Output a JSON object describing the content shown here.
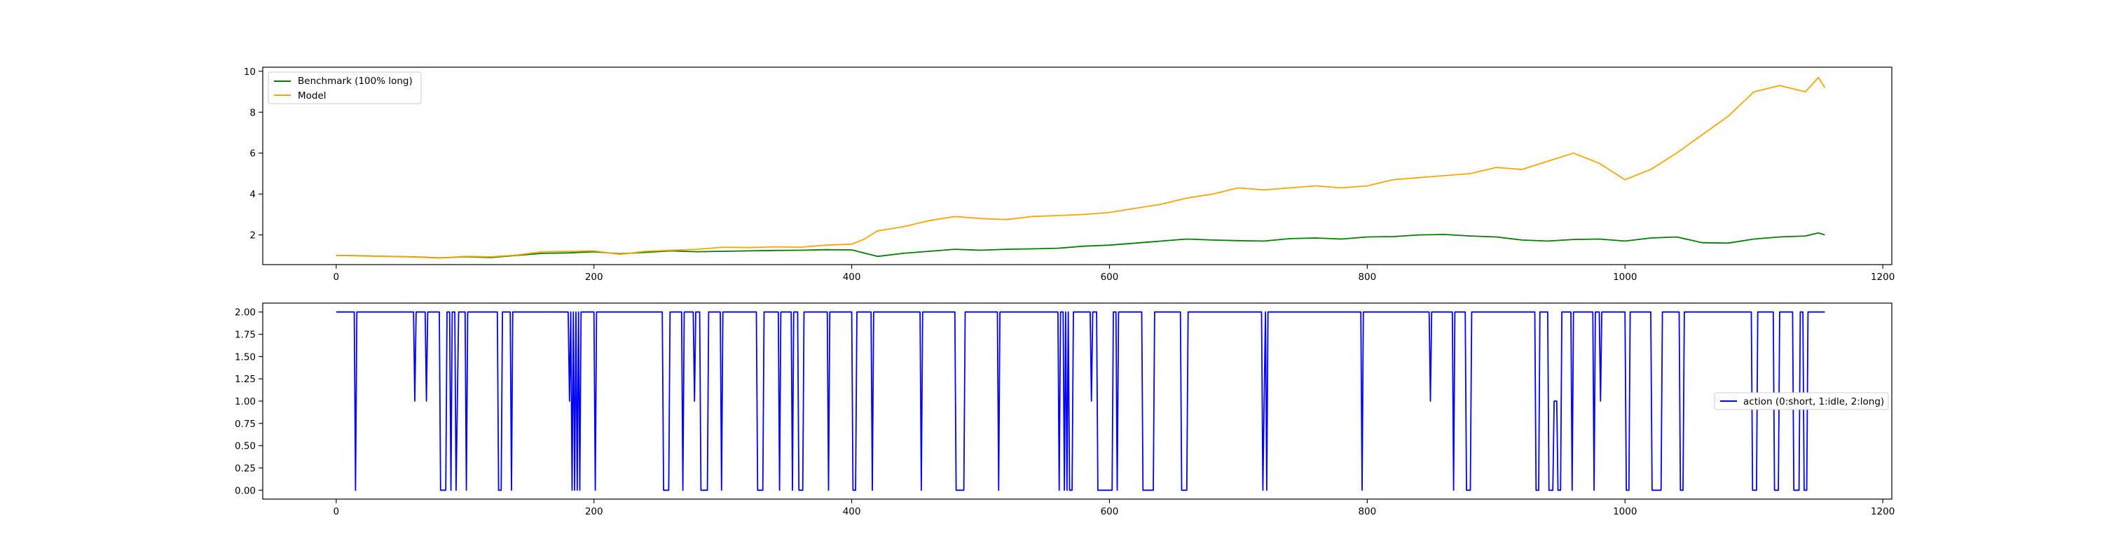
{
  "chart_data": [
    {
      "type": "line",
      "title": "",
      "xlabel": "",
      "ylabel": "",
      "xlim": [
        -57,
        1207
      ],
      "ylim": [
        0.55,
        10.2
      ],
      "xticks": [
        0,
        200,
        400,
        600,
        800,
        1000,
        1200
      ],
      "yticks": [
        2,
        4,
        6,
        8,
        10
      ],
      "grid": false,
      "legend_position": "upper-left",
      "series": [
        {
          "name": "Benchmark (100% long)",
          "color": "#008000",
          "x": [
            0,
            20,
            40,
            60,
            80,
            100,
            120,
            140,
            160,
            180,
            200,
            220,
            240,
            260,
            280,
            300,
            320,
            340,
            360,
            380,
            400,
            420,
            440,
            460,
            480,
            500,
            520,
            540,
            560,
            580,
            600,
            620,
            640,
            660,
            680,
            700,
            720,
            740,
            760,
            780,
            800,
            820,
            840,
            860,
            880,
            900,
            920,
            940,
            960,
            980,
            1000,
            1020,
            1040,
            1060,
            1080,
            1100,
            1120,
            1140,
            1150,
            1155
          ],
          "values": [
            1.0,
            0.98,
            0.95,
            0.93,
            0.88,
            0.93,
            0.9,
            1.0,
            1.1,
            1.12,
            1.18,
            1.08,
            1.15,
            1.22,
            1.18,
            1.2,
            1.22,
            1.24,
            1.25,
            1.28,
            1.27,
            0.95,
            1.1,
            1.2,
            1.3,
            1.25,
            1.3,
            1.32,
            1.35,
            1.45,
            1.5,
            1.6,
            1.7,
            1.8,
            1.75,
            1.72,
            1.7,
            1.82,
            1.85,
            1.8,
            1.9,
            1.92,
            2.0,
            2.02,
            1.95,
            1.9,
            1.75,
            1.7,
            1.78,
            1.8,
            1.7,
            1.85,
            1.9,
            1.62,
            1.6,
            1.8,
            1.9,
            1.95,
            2.1,
            2.0
          ]
        },
        {
          "name": "Model",
          "color": "#ffa500",
          "x": [
            0,
            20,
            40,
            60,
            80,
            100,
            120,
            140,
            160,
            180,
            200,
            220,
            240,
            260,
            280,
            300,
            320,
            340,
            360,
            380,
            400,
            410,
            420,
            440,
            460,
            480,
            500,
            520,
            540,
            560,
            580,
            600,
            620,
            640,
            660,
            680,
            700,
            720,
            740,
            760,
            780,
            800,
            820,
            840,
            860,
            880,
            900,
            920,
            940,
            960,
            980,
            1000,
            1020,
            1040,
            1060,
            1080,
            1100,
            1120,
            1140,
            1150,
            1155
          ],
          "values": [
            1.0,
            0.97,
            0.95,
            0.92,
            0.87,
            0.95,
            0.93,
            1.02,
            1.18,
            1.2,
            1.22,
            1.05,
            1.2,
            1.25,
            1.3,
            1.4,
            1.38,
            1.42,
            1.4,
            1.5,
            1.55,
            1.8,
            2.2,
            2.4,
            2.7,
            2.9,
            2.8,
            2.75,
            2.9,
            2.95,
            3.0,
            3.1,
            3.3,
            3.5,
            3.8,
            4.0,
            4.3,
            4.2,
            4.3,
            4.4,
            4.3,
            4.4,
            4.7,
            4.8,
            4.9,
            5.0,
            5.3,
            5.2,
            5.6,
            6.0,
            5.5,
            4.7,
            5.2,
            6.0,
            6.9,
            7.8,
            9.0,
            9.3,
            9.0,
            9.7,
            9.2
          ]
        }
      ]
    },
    {
      "type": "line",
      "title": "",
      "xlabel": "",
      "ylabel": "",
      "xlim": [
        -57,
        1207
      ],
      "ylim": [
        -0.1,
        2.1
      ],
      "xticks": [
        0,
        200,
        400,
        600,
        800,
        1000,
        1200
      ],
      "yticks": [
        "0.00",
        "0.25",
        "0.50",
        "0.75",
        "1.00",
        "1.25",
        "1.50",
        "1.75",
        "2.00"
      ],
      "grid": false,
      "legend_position": "center-right",
      "series": [
        {
          "name": "action (0:short, 1:idle, 2:long)",
          "color": "#0000ff",
          "step_segments": [
            [
              0,
              2
            ],
            [
              14,
              2
            ],
            [
              15,
              0
            ],
            [
              16,
              2
            ],
            [
              60,
              2
            ],
            [
              61,
              1
            ],
            [
              62,
              2
            ],
            [
              69,
              2
            ],
            [
              70,
              1
            ],
            [
              71,
              2
            ],
            [
              80,
              2
            ],
            [
              81,
              0
            ],
            [
              85,
              0
            ],
            [
              86,
              2
            ],
            [
              88,
              2
            ],
            [
              89,
              0
            ],
            [
              90,
              2
            ],
            [
              92,
              2
            ],
            [
              93,
              0
            ],
            [
              95,
              2
            ],
            [
              100,
              2
            ],
            [
              101,
              0
            ],
            [
              102,
              2
            ],
            [
              125,
              2
            ],
            [
              126,
              0
            ],
            [
              128,
              0
            ],
            [
              129,
              2
            ],
            [
              135,
              2
            ],
            [
              136,
              0
            ],
            [
              137,
              2
            ],
            [
              180,
              2
            ],
            [
              181,
              1
            ],
            [
              182,
              2
            ],
            [
              183,
              0
            ],
            [
              184,
              2
            ],
            [
              185,
              0
            ],
            [
              186,
              2
            ],
            [
              187,
              0
            ],
            [
              188,
              2
            ],
            [
              189,
              0
            ],
            [
              190,
              2
            ],
            [
              200,
              2
            ],
            [
              201,
              0
            ],
            [
              202,
              2
            ],
            [
              253,
              2
            ],
            [
              254,
              0
            ],
            [
              258,
              0
            ],
            [
              259,
              2
            ],
            [
              268,
              2
            ],
            [
              269,
              0
            ],
            [
              270,
              2
            ],
            [
              277,
              2
            ],
            [
              278,
              1
            ],
            [
              279,
              2
            ],
            [
              282,
              2
            ],
            [
              283,
              0
            ],
            [
              288,
              0
            ],
            [
              289,
              2
            ],
            [
              298,
              2
            ],
            [
              299,
              0
            ],
            [
              300,
              2
            ],
            [
              326,
              2
            ],
            [
              327,
              0
            ],
            [
              331,
              0
            ],
            [
              332,
              2
            ],
            [
              343,
              2
            ],
            [
              344,
              0
            ],
            [
              345,
              2
            ],
            [
              353,
              2
            ],
            [
              354,
              0
            ],
            [
              355,
              2
            ],
            [
              358,
              2
            ],
            [
              359,
              0
            ],
            [
              362,
              0
            ],
            [
              363,
              2
            ],
            [
              381,
              2
            ],
            [
              382,
              0
            ],
            [
              383,
              2
            ],
            [
              400,
              2
            ],
            [
              401,
              0
            ],
            [
              403,
              0
            ],
            [
              404,
              2
            ],
            [
              415,
              2
            ],
            [
              416,
              0
            ],
            [
              417,
              2
            ],
            [
              453,
              2
            ],
            [
              454,
              0
            ],
            [
              455,
              2
            ],
            [
              480,
              2
            ],
            [
              481,
              0
            ],
            [
              487,
              0
            ],
            [
              488,
              2
            ],
            [
              513,
              2
            ],
            [
              514,
              0
            ],
            [
              515,
              2
            ],
            [
              560,
              2
            ],
            [
              561,
              0
            ],
            [
              562,
              2
            ],
            [
              564,
              2
            ],
            [
              565,
              0
            ],
            [
              566,
              2
            ],
            [
              567,
              0
            ],
            [
              568,
              2
            ],
            [
              569,
              0
            ],
            [
              571,
              0
            ],
            [
              572,
              2
            ],
            [
              585,
              2
            ],
            [
              586,
              1
            ],
            [
              587,
              2
            ],
            [
              590,
              2
            ],
            [
              591,
              0
            ],
            [
              602,
              0
            ],
            [
              603,
              2
            ],
            [
              605,
              2
            ],
            [
              606,
              0
            ],
            [
              607,
              2
            ],
            [
              625,
              2
            ],
            [
              626,
              0
            ],
            [
              634,
              0
            ],
            [
              635,
              2
            ],
            [
              655,
              2
            ],
            [
              656,
              0
            ],
            [
              660,
              0
            ],
            [
              661,
              2
            ],
            [
              718,
              2
            ],
            [
              719,
              0
            ],
            [
              720,
              1
            ],
            [
              721,
              2
            ],
            [
              722,
              0
            ],
            [
              723,
              2
            ],
            [
              795,
              2
            ],
            [
              796,
              0
            ],
            [
              797,
              2
            ],
            [
              848,
              2
            ],
            [
              849,
              1
            ],
            [
              850,
              2
            ],
            [
              866,
              2
            ],
            [
              867,
              0
            ],
            [
              868,
              2
            ],
            [
              876,
              2
            ],
            [
              877,
              0
            ],
            [
              880,
              0
            ],
            [
              881,
              2
            ],
            [
              930,
              2
            ],
            [
              931,
              0
            ],
            [
              933,
              0
            ],
            [
              934,
              2
            ],
            [
              940,
              2
            ],
            [
              941,
              0
            ],
            [
              944,
              0
            ],
            [
              945,
              1
            ],
            [
              947,
              1
            ],
            [
              948,
              0
            ],
            [
              950,
              0
            ],
            [
              951,
              2
            ],
            [
              958,
              2
            ],
            [
              959,
              0
            ],
            [
              960,
              2
            ],
            [
              975,
              2
            ],
            [
              976,
              0
            ],
            [
              977,
              2
            ],
            [
              980,
              2
            ],
            [
              981,
              1
            ],
            [
              982,
              2
            ],
            [
              1000,
              2
            ],
            [
              1001,
              0
            ],
            [
              1003,
              0
            ],
            [
              1004,
              2
            ],
            [
              1020,
              2
            ],
            [
              1021,
              0
            ],
            [
              1028,
              0
            ],
            [
              1029,
              2
            ],
            [
              1042,
              2
            ],
            [
              1043,
              0
            ],
            [
              1045,
              0
            ],
            [
              1046,
              2
            ],
            [
              1098,
              2
            ],
            [
              1099,
              0
            ],
            [
              1102,
              0
            ],
            [
              1103,
              2
            ],
            [
              1115,
              2
            ],
            [
              1116,
              0
            ],
            [
              1119,
              0
            ],
            [
              1120,
              2
            ],
            [
              1130,
              2
            ],
            [
              1131,
              0
            ],
            [
              1135,
              0
            ],
            [
              1136,
              2
            ],
            [
              1138,
              2
            ],
            [
              1139,
              0
            ],
            [
              1141,
              0
            ],
            [
              1142,
              2
            ],
            [
              1155,
              2
            ]
          ]
        }
      ]
    }
  ]
}
